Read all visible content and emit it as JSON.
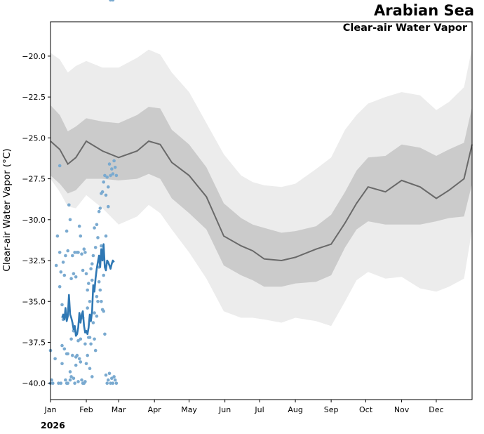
{
  "title": "Arabian Sea",
  "subtitle": "Clear-air Water Vapor",
  "year_label": "2026",
  "chart_data": {
    "type": "line",
    "ylabel": "Clear-air Water Vapor ($^\\circ$C)",
    "ylabel_display": "Clear-air Water Vapor (°C)",
    "ylim": [
      -41,
      -17.9
    ],
    "xlim": [
      0,
      365
    ],
    "y_ticks": [
      -20.0,
      -22.5,
      -25.0,
      -27.5,
      -30.0,
      -32.5,
      -35.0,
      -37.5,
      -40.0
    ],
    "y_tick_labels": [
      "−20.0",
      "−22.5",
      "−25.0",
      "−27.5",
      "−30.0",
      "−32.5",
      "−35.0",
      "−37.5",
      "−40.0"
    ],
    "x_ticks": [
      0,
      31,
      59,
      90,
      120,
      151,
      181,
      212,
      243,
      273,
      304,
      334
    ],
    "x_tick_labels": [
      "Jan",
      "Feb",
      "Mar",
      "Apr",
      "May",
      "Jun",
      "Jul",
      "Aug",
      "Sep",
      "Oct",
      "Nov",
      "Dec"
    ],
    "grid": false,
    "colors": {
      "outer_band": "#ececec",
      "inner_band": "#cbcbcb",
      "median": "#696969",
      "current": "#2f78b4",
      "points": "#7aaad0"
    },
    "climatology_days": [
      0,
      8,
      15,
      22,
      31,
      45,
      59,
      75,
      85,
      95,
      105,
      120,
      135,
      150,
      165,
      175,
      185,
      200,
      212,
      230,
      243,
      255,
      265,
      275,
      290,
      304,
      320,
      334,
      345,
      358,
      365
    ],
    "median": [
      -25.2,
      -25.7,
      -26.6,
      -26.2,
      -25.2,
      -25.8,
      -26.2,
      -25.8,
      -25.2,
      -25.4,
      -26.5,
      -27.3,
      -28.6,
      -31.0,
      -31.6,
      -31.9,
      -32.4,
      -32.5,
      -32.3,
      -31.8,
      -31.5,
      -30.2,
      -29.0,
      -28.0,
      -28.3,
      -27.6,
      -28.0,
      -28.7,
      -28.2,
      -27.5,
      -25.4
    ],
    "p25": [
      -27.3,
      -27.8,
      -28.4,
      -28.2,
      -27.5,
      -27.5,
      -27.6,
      -27.5,
      -27.2,
      -27.5,
      -28.7,
      -29.6,
      -30.6,
      -32.8,
      -33.4,
      -33.7,
      -34.1,
      -34.1,
      -33.9,
      -33.8,
      -33.4,
      -31.7,
      -30.6,
      -30.1,
      -30.3,
      -30.3,
      -30.3,
      -30.1,
      -29.9,
      -29.8,
      -27.8
    ],
    "p75": [
      -23.0,
      -23.6,
      -24.6,
      -24.3,
      -23.8,
      -24.0,
      -24.1,
      -23.6,
      -23.1,
      -23.2,
      -24.5,
      -25.4,
      -26.8,
      -29.0,
      -29.9,
      -30.3,
      -30.5,
      -30.8,
      -30.7,
      -30.4,
      -29.7,
      -28.3,
      -27.0,
      -26.2,
      -26.1,
      -25.4,
      -25.6,
      -26.1,
      -25.7,
      -25.3,
      -23.1
    ],
    "p10": [
      -27.5,
      -28.3,
      -29.2,
      -29.3,
      -28.5,
      -29.3,
      -30.3,
      -29.8,
      -29.1,
      -29.6,
      -30.6,
      -32.0,
      -33.6,
      -35.6,
      -36.0,
      -36.0,
      -36.1,
      -36.3,
      -36.0,
      -36.2,
      -36.5,
      -35.0,
      -33.7,
      -33.2,
      -33.6,
      -33.5,
      -34.2,
      -34.4,
      -34.1,
      -33.6,
      -30.6
    ],
    "p90": [
      -19.8,
      -20.2,
      -21.0,
      -20.6,
      -20.3,
      -20.7,
      -20.7,
      -20.1,
      -19.6,
      -19.9,
      -21.0,
      -22.2,
      -24.1,
      -26.0,
      -27.3,
      -27.7,
      -27.9,
      -28.0,
      -27.8,
      -26.9,
      -26.2,
      -24.5,
      -23.6,
      -22.9,
      -22.5,
      -22.2,
      -22.4,
      -23.3,
      -22.8,
      -21.9,
      -19.5
    ],
    "current_series": {
      "x": [
        10,
        11,
        12,
        13,
        14,
        15,
        16,
        17,
        18,
        19,
        20,
        21,
        22,
        23,
        24,
        25,
        26,
        27,
        28,
        29,
        30,
        31,
        32,
        33,
        34,
        35,
        36,
        37,
        38,
        39,
        40,
        41,
        42,
        43,
        44,
        45,
        46,
        47,
        48,
        49,
        50,
        51,
        52,
        53,
        54,
        55
      ],
      "y": [
        -36.0,
        -35.8,
        -36.1,
        -35.4,
        -36.2,
        -35.9,
        -34.6,
        -35.8,
        -36.0,
        -36.3,
        -36.7,
        -36.5,
        -37.1,
        -37.0,
        -36.6,
        -35.7,
        -36.3,
        -35.8,
        -35.6,
        -36.5,
        -36.9,
        -36.8,
        -37.0,
        -36.6,
        -35.8,
        -36.2,
        -35.6,
        -34.0,
        -34.4,
        -33.6,
        -33.0,
        -32.6,
        -32.2,
        -32.9,
        -31.8,
        -32.5,
        -31.5,
        -32.9,
        -33.1,
        -32.5,
        -32.6,
        -32.8,
        -33.0,
        -32.7,
        -32.5,
        -32.6
      ]
    },
    "observations_x": [
      0,
      0,
      1,
      2,
      4,
      5,
      6,
      7,
      8,
      8,
      9,
      9,
      10,
      10,
      11,
      11,
      12,
      12,
      13,
      13,
      14,
      14,
      15,
      15,
      16,
      16,
      17,
      17,
      18,
      18,
      19,
      19,
      20,
      20,
      21,
      21,
      22,
      22,
      23,
      23,
      24,
      24,
      25,
      25,
      26,
      26,
      27,
      27,
      28,
      28,
      29,
      29,
      30,
      30,
      31,
      31,
      32,
      32,
      33,
      33,
      34,
      34,
      35,
      35,
      36,
      36,
      37,
      37,
      38,
      38,
      39,
      39,
      40,
      40,
      41,
      41,
      42,
      42,
      43,
      43,
      44,
      44,
      45,
      45,
      46,
      46,
      47,
      47,
      48,
      48,
      49,
      49,
      50,
      50,
      51,
      51,
      52,
      52,
      53,
      53,
      54,
      54,
      55,
      55,
      56,
      56,
      57,
      57,
      8,
      10,
      14,
      15,
      17,
      18,
      20,
      22,
      24,
      26,
      28,
      30,
      32,
      34,
      36,
      38,
      40,
      42,
      44,
      46,
      48,
      50,
      52,
      54
    ],
    "observations_y": [
      -38.0,
      -40.0,
      -39.8,
      -40.0,
      -38.5,
      -32.8,
      -31.0,
      -40.0,
      -34.1,
      -32.0,
      -40.0,
      -33.2,
      -38.8,
      -35.2,
      -36.1,
      -32.6,
      -37.9,
      -33.4,
      -39.8,
      -32.2,
      -38.2,
      -30.7,
      -40.0,
      -31.9,
      -35.4,
      -29.1,
      -39.8,
      -30.0,
      -39.6,
      -33.6,
      -38.3,
      -32.2,
      -39.7,
      -33.3,
      -40.0,
      -32.0,
      -38.9,
      -33.5,
      -38.3,
      -32.0,
      -39.9,
      -32.0,
      -38.5,
      -30.4,
      -37.3,
      -31.0,
      -39.8,
      -32.1,
      -40.0,
      -33.1,
      -40.0,
      -31.8,
      -39.9,
      -32.0,
      -38.8,
      -33.3,
      -38.3,
      -34.3,
      -37.2,
      -33.9,
      -39.1,
      -35.0,
      -37.6,
      -33.0,
      -39.6,
      -32.7,
      -36.3,
      -32.2,
      -37.3,
      -30.5,
      -38.0,
      -31.7,
      -35.9,
      -30.3,
      -35.0,
      -31.1,
      -33.8,
      -29.5,
      -34.3,
      -29.3,
      -35.0,
      -28.4,
      -35.5,
      -28.3,
      -35.6,
      -27.7,
      -37.0,
      -27.3,
      -39.5,
      -28.5,
      -40.0,
      -27.4,
      -39.8,
      -28.0,
      -39.4,
      -26.6,
      -40.0,
      -27.3,
      -39.7,
      -26.9,
      -40.0,
      -27.2,
      -39.6,
      -26.4,
      -39.8,
      -26.8,
      -40.0,
      -27.3,
      -26.7,
      -37.7,
      -40.0,
      -38.2,
      -39.3,
      -37.3,
      -36.8,
      -38.4,
      -37.4,
      -38.7,
      -36.0,
      -37.6,
      -35.4,
      -37.2,
      -33.7,
      -35.7,
      -34.7,
      -32.9,
      -31.6,
      -33.4,
      -31.0,
      -29.2
    ]
  }
}
